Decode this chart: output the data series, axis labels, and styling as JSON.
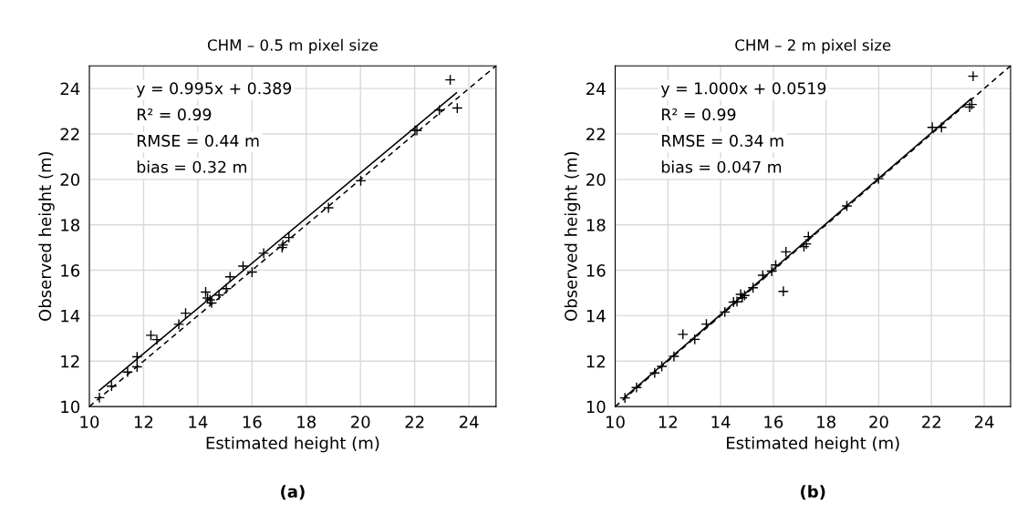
{
  "chart_data": [
    {
      "type": "scatter",
      "title": "CHM – 0.5 m pixel size",
      "xlabel": "Estimated height (m)",
      "ylabel": "Observed height (m)",
      "xlim": [
        10,
        25
      ],
      "ylim": [
        10,
        25
      ],
      "xticks": [
        10,
        12,
        14,
        16,
        18,
        20,
        22,
        24
      ],
      "yticks": [
        10,
        12,
        14,
        16,
        18,
        20,
        22,
        24
      ],
      "grid": true,
      "legend": false,
      "annotations": [
        "y = 0.995x + 0.389",
        "R² = 0.99",
        "RMSE = 0.44 m",
        "bias = 0.32 m",
        "(a)"
      ],
      "series": [
        {
          "type": "scatter",
          "marker": "cross",
          "color": "#000000",
          "x": [
            10.37,
            10.82,
            11.41,
            11.76,
            11.76,
            12.27,
            12.49,
            13.3,
            13.55,
            14.29,
            14.36,
            14.45,
            14.51,
            14.78,
            15.05,
            15.19,
            15.67,
            16.0,
            16.43,
            17.11,
            17.14,
            17.36,
            18.82,
            20.01,
            22.01,
            22.08,
            22.91,
            23.31,
            23.57
          ],
          "values": [
            10.39,
            10.9,
            11.52,
            11.75,
            12.19,
            13.14,
            12.95,
            13.62,
            14.11,
            15.04,
            14.78,
            14.7,
            14.56,
            14.91,
            15.19,
            15.71,
            16.18,
            15.92,
            16.75,
            17.0,
            17.11,
            17.44,
            18.75,
            19.94,
            22.15,
            22.15,
            23.05,
            24.38,
            23.14
          ]
        },
        {
          "type": "line",
          "line_style": "solid",
          "color": "#000000",
          "x": [
            10.37,
            23.54
          ],
          "values": [
            10.71,
            23.81
          ]
        },
        {
          "type": "line",
          "line_style": "dashed",
          "color": "#000000",
          "x": [
            10,
            25
          ],
          "values": [
            10,
            25
          ]
        }
      ]
    },
    {
      "type": "scatter",
      "title": "CHM – 2 m pixel size",
      "xlabel": "Estimated height (m)",
      "ylabel": "Observed height (m)",
      "xlim": [
        10,
        25
      ],
      "ylim": [
        10,
        25
      ],
      "xticks": [
        10,
        12,
        14,
        16,
        18,
        20,
        22,
        24
      ],
      "yticks": [
        10,
        12,
        14,
        16,
        18,
        20,
        22,
        24
      ],
      "grid": true,
      "legend": false,
      "annotations": [
        "y = 1.000x + 0.0519",
        "R² = 0.99",
        "RMSE = 0.34 m",
        "bias = 0.047 m",
        "(b)"
      ],
      "series": [
        {
          "type": "scatter",
          "marker": "cross",
          "color": "#000000",
          "x": [
            10.37,
            10.81,
            11.5,
            11.77,
            12.23,
            12.57,
            13.02,
            13.46,
            14.16,
            14.49,
            14.62,
            14.76,
            14.82,
            14.91,
            15.23,
            15.6,
            15.94,
            16.09,
            16.48,
            16.38,
            17.16,
            17.25,
            17.33,
            18.79,
            19.99,
            22.03,
            22.38,
            23.45,
            23.53,
            23.58
          ],
          "values": [
            10.38,
            10.84,
            11.48,
            11.77,
            12.21,
            13.18,
            12.96,
            13.63,
            14.16,
            14.6,
            14.62,
            14.94,
            14.79,
            14.89,
            15.23,
            15.78,
            15.96,
            16.23,
            16.81,
            15.07,
            17.04,
            17.16,
            17.48,
            18.83,
            20.03,
            22.29,
            22.29,
            23.18,
            23.3,
            24.54
          ]
        },
        {
          "type": "line",
          "line_style": "solid",
          "color": "#000000",
          "x": [
            10.37,
            23.5
          ],
          "values": [
            10.42,
            23.55
          ]
        },
        {
          "type": "line",
          "line_style": "dashed",
          "color": "#000000",
          "x": [
            10,
            25
          ],
          "values": [
            10,
            25
          ]
        }
      ]
    }
  ]
}
